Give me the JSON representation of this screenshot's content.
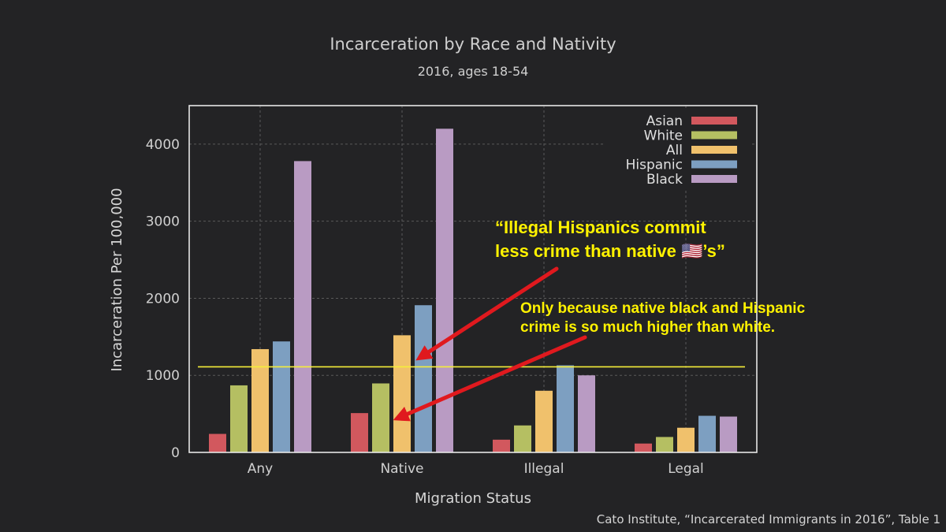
{
  "chart_data": {
    "type": "bar",
    "title": "Incarceration by Race and Nativity",
    "subtitle": "2016, ages 18-54",
    "xlabel": "Migration Status",
    "ylabel": "Incarceration Per 100,000",
    "ylim": [
      0,
      4500
    ],
    "yticks": [
      0,
      1000,
      2000,
      3000,
      4000
    ],
    "categories": [
      "Any",
      "Native",
      "Illegal",
      "Legal"
    ],
    "series": [
      {
        "name": "Asian",
        "color": "#d2585e",
        "values": [
          240,
          510,
          165,
          115
        ]
      },
      {
        "name": "White",
        "color": "#b5bf62",
        "values": [
          870,
          895,
          350,
          200
        ]
      },
      {
        "name": "All",
        "color": "#f0c16c",
        "values": [
          1340,
          1520,
          800,
          320
        ]
      },
      {
        "name": "Hispanic",
        "color": "#7d9fc1",
        "values": [
          1440,
          1910,
          1130,
          475
        ]
      },
      {
        "name": "Black",
        "color": "#b99bc3",
        "values": [
          3780,
          4200,
          1000,
          465
        ]
      }
    ],
    "grid": true,
    "legend_position": "top-right",
    "reference_line": {
      "value": 1110,
      "color": "#f5ee3a"
    }
  },
  "annotations": {
    "quote_line1": "“Illegal Hispanics commit",
    "quote_line2": "less crime than native 🇺🇸’s”",
    "reply_line1": "Only because native black and Hispanic",
    "reply_line2": "crime is so much higher than white.",
    "arrow_color": "#e0191e"
  },
  "source": "Cato Institute, “Incarcerated Immigrants in 2016”, Table 1"
}
